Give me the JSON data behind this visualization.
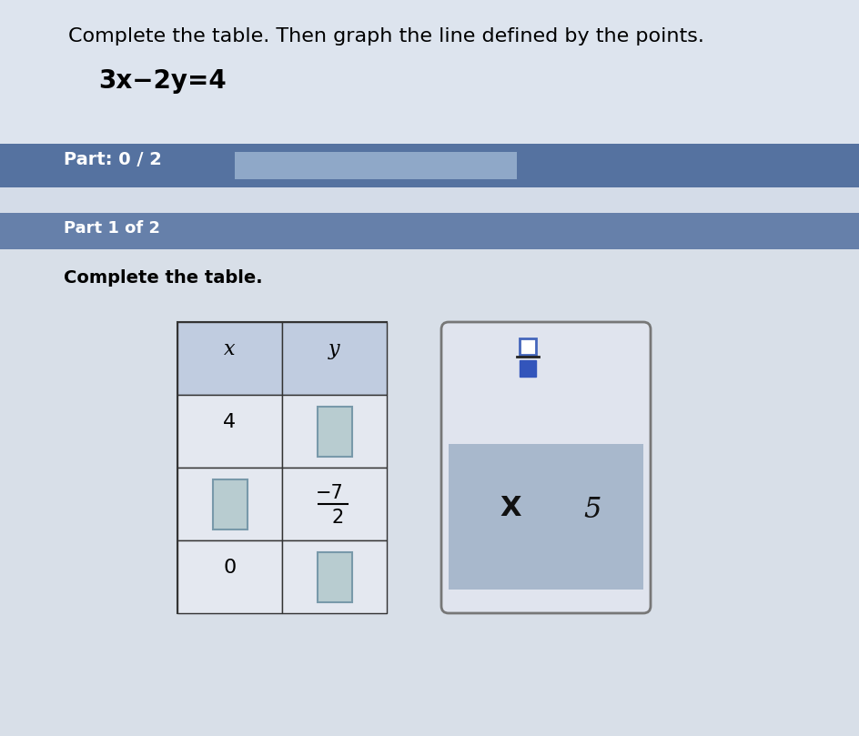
{
  "title_text": "Complete the table. Then graph the line defined by the points.",
  "equation": "3x−2y=4",
  "part_label": "Part: 0 / 2",
  "part1_label": "Part 1 of 2",
  "instruction": "Complete the table.",
  "fraction_num": "7",
  "fraction_den": "2",
  "fraction_sign": "−",
  "bg_color": "#d4dce8",
  "top_bg_color": "#dde4ee",
  "header_bar_color": "#5572a0",
  "progress_bar_color": "#8fa8c8",
  "part1_bar_color": "#6680aa",
  "part1_bg_color": "#c8d0dc",
  "content_bg_color": "#d8dfe8",
  "table_header_bg": "#c0cce0",
  "table_cell_bg": "#e4e8f0",
  "blank_cell_bg": "#b8ccd0",
  "blank_cell_border": "#7899aa",
  "side_panel_bg": "#e0e4ee",
  "side_panel_border": "#888888",
  "side_inner_bg": "#a8b8cc",
  "title_fontsize": 16,
  "eq_fontsize": 19
}
